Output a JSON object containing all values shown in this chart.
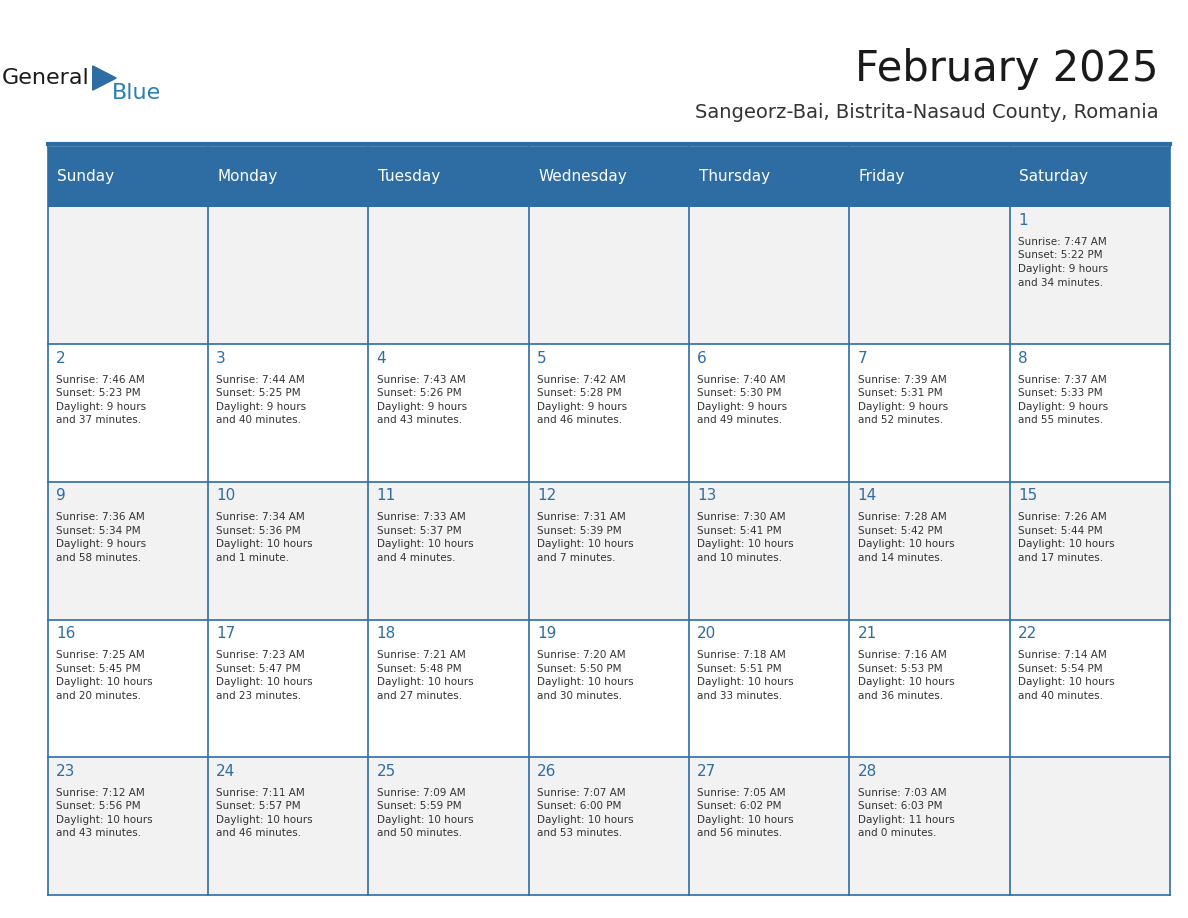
{
  "title": "February 2025",
  "subtitle": "Sangeorz-Bai, Bistrita-Nasaud County, Romania",
  "header_bg": "#2E6DA4",
  "header_text": "#FFFFFF",
  "cell_bg": "#F2F2F2",
  "cell_bg_alt": "#FFFFFF",
  "border_color": "#2E6DA4",
  "title_color": "#1a1a1a",
  "subtitle_color": "#333333",
  "day_number_color": "#2E6DA4",
  "cell_text_color": "#333333",
  "days_of_week": [
    "Sunday",
    "Monday",
    "Tuesday",
    "Wednesday",
    "Thursday",
    "Friday",
    "Saturday"
  ],
  "logo_text1": "General",
  "logo_text2": "Blue",
  "logo_color1": "#1a1a1a",
  "logo_color2": "#2980b9",
  "weeks": [
    [
      {
        "day": null,
        "info": null
      },
      {
        "day": null,
        "info": null
      },
      {
        "day": null,
        "info": null
      },
      {
        "day": null,
        "info": null
      },
      {
        "day": null,
        "info": null
      },
      {
        "day": null,
        "info": null
      },
      {
        "day": "1",
        "info": "Sunrise: 7:47 AM\nSunset: 5:22 PM\nDaylight: 9 hours\nand 34 minutes."
      }
    ],
    [
      {
        "day": "2",
        "info": "Sunrise: 7:46 AM\nSunset: 5:23 PM\nDaylight: 9 hours\nand 37 minutes."
      },
      {
        "day": "3",
        "info": "Sunrise: 7:44 AM\nSunset: 5:25 PM\nDaylight: 9 hours\nand 40 minutes."
      },
      {
        "day": "4",
        "info": "Sunrise: 7:43 AM\nSunset: 5:26 PM\nDaylight: 9 hours\nand 43 minutes."
      },
      {
        "day": "5",
        "info": "Sunrise: 7:42 AM\nSunset: 5:28 PM\nDaylight: 9 hours\nand 46 minutes."
      },
      {
        "day": "6",
        "info": "Sunrise: 7:40 AM\nSunset: 5:30 PM\nDaylight: 9 hours\nand 49 minutes."
      },
      {
        "day": "7",
        "info": "Sunrise: 7:39 AM\nSunset: 5:31 PM\nDaylight: 9 hours\nand 52 minutes."
      },
      {
        "day": "8",
        "info": "Sunrise: 7:37 AM\nSunset: 5:33 PM\nDaylight: 9 hours\nand 55 minutes."
      }
    ],
    [
      {
        "day": "9",
        "info": "Sunrise: 7:36 AM\nSunset: 5:34 PM\nDaylight: 9 hours\nand 58 minutes."
      },
      {
        "day": "10",
        "info": "Sunrise: 7:34 AM\nSunset: 5:36 PM\nDaylight: 10 hours\nand 1 minute."
      },
      {
        "day": "11",
        "info": "Sunrise: 7:33 AM\nSunset: 5:37 PM\nDaylight: 10 hours\nand 4 minutes."
      },
      {
        "day": "12",
        "info": "Sunrise: 7:31 AM\nSunset: 5:39 PM\nDaylight: 10 hours\nand 7 minutes."
      },
      {
        "day": "13",
        "info": "Sunrise: 7:30 AM\nSunset: 5:41 PM\nDaylight: 10 hours\nand 10 minutes."
      },
      {
        "day": "14",
        "info": "Sunrise: 7:28 AM\nSunset: 5:42 PM\nDaylight: 10 hours\nand 14 minutes."
      },
      {
        "day": "15",
        "info": "Sunrise: 7:26 AM\nSunset: 5:44 PM\nDaylight: 10 hours\nand 17 minutes."
      }
    ],
    [
      {
        "day": "16",
        "info": "Sunrise: 7:25 AM\nSunset: 5:45 PM\nDaylight: 10 hours\nand 20 minutes."
      },
      {
        "day": "17",
        "info": "Sunrise: 7:23 AM\nSunset: 5:47 PM\nDaylight: 10 hours\nand 23 minutes."
      },
      {
        "day": "18",
        "info": "Sunrise: 7:21 AM\nSunset: 5:48 PM\nDaylight: 10 hours\nand 27 minutes."
      },
      {
        "day": "19",
        "info": "Sunrise: 7:20 AM\nSunset: 5:50 PM\nDaylight: 10 hours\nand 30 minutes."
      },
      {
        "day": "20",
        "info": "Sunrise: 7:18 AM\nSunset: 5:51 PM\nDaylight: 10 hours\nand 33 minutes."
      },
      {
        "day": "21",
        "info": "Sunrise: 7:16 AM\nSunset: 5:53 PM\nDaylight: 10 hours\nand 36 minutes."
      },
      {
        "day": "22",
        "info": "Sunrise: 7:14 AM\nSunset: 5:54 PM\nDaylight: 10 hours\nand 40 minutes."
      }
    ],
    [
      {
        "day": "23",
        "info": "Sunrise: 7:12 AM\nSunset: 5:56 PM\nDaylight: 10 hours\nand 43 minutes."
      },
      {
        "day": "24",
        "info": "Sunrise: 7:11 AM\nSunset: 5:57 PM\nDaylight: 10 hours\nand 46 minutes."
      },
      {
        "day": "25",
        "info": "Sunrise: 7:09 AM\nSunset: 5:59 PM\nDaylight: 10 hours\nand 50 minutes."
      },
      {
        "day": "26",
        "info": "Sunrise: 7:07 AM\nSunset: 6:00 PM\nDaylight: 10 hours\nand 53 minutes."
      },
      {
        "day": "27",
        "info": "Sunrise: 7:05 AM\nSunset: 6:02 PM\nDaylight: 10 hours\nand 56 minutes."
      },
      {
        "day": "28",
        "info": "Sunrise: 7:03 AM\nSunset: 6:03 PM\nDaylight: 11 hours\nand 0 minutes."
      },
      {
        "day": null,
        "info": null
      }
    ]
  ]
}
